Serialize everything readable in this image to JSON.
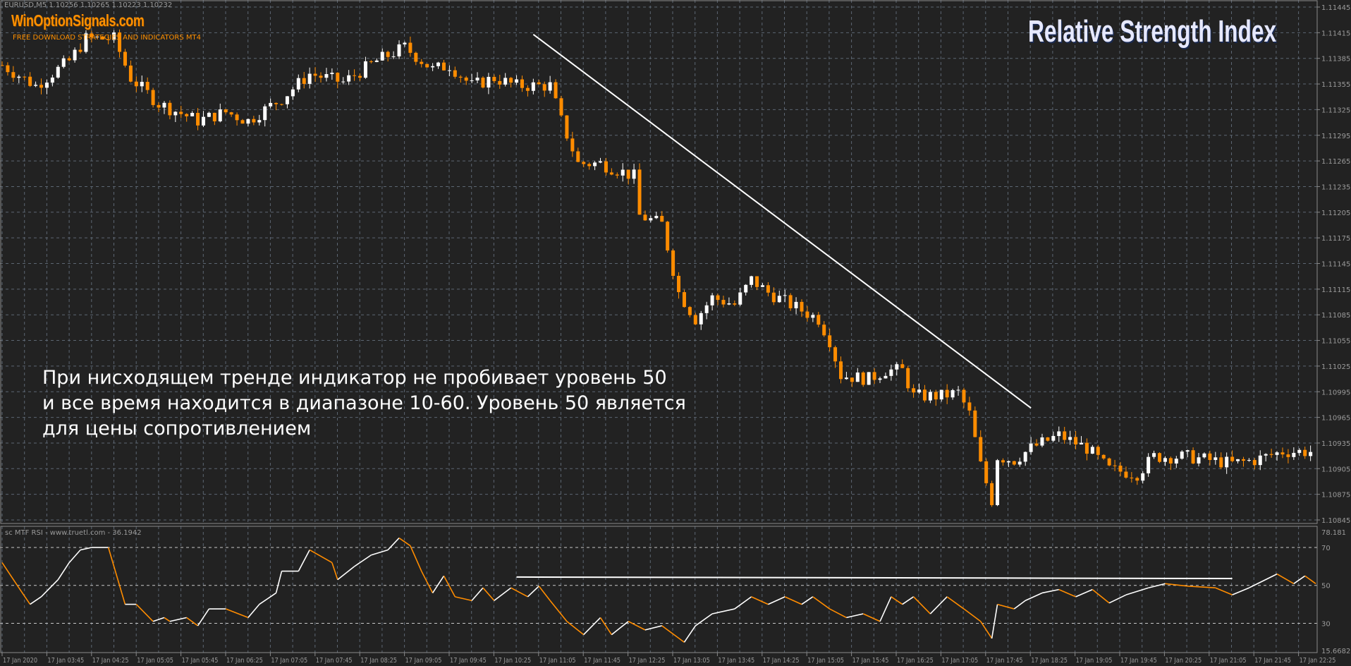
{
  "header": {
    "symbol_info": "EURUSD,M5  1.10256 1.10265 1.10223 1.10232",
    "brand": "WinOptionSignals.com",
    "brand_subtitle": "FREE DOWNLOAD STRATEGIES AND INDICATORS MT4",
    "title": "Relative Strength Index"
  },
  "annotation": {
    "lines": [
      "При нисходящем тренде индикатор не пробивает уровень 50",
      "и все время находится в диапазоне 10-60. Уровень 50 является",
      "для цены сопротивлением"
    ]
  },
  "colors": {
    "background": "#222222",
    "grid": "#5c6672",
    "axis_text": "#9a9a9a",
    "bull_candle": "#ffffff",
    "bear_candle": "#ff8c00",
    "trendline": "#ffffff"
  },
  "chart_data": [
    {
      "type": "candlestick",
      "symbol": "EURUSD",
      "timeframe": "M5",
      "y_ticks": [
        "1.11445",
        "1.11415",
        "1.11385",
        "1.11355",
        "1.11325",
        "1.11295",
        "1.11265",
        "1.11235",
        "1.11205",
        "1.11175",
        "1.11145",
        "1.11115",
        "1.11085",
        "1.11055",
        "1.11025",
        "1.10995",
        "1.10965",
        "1.10935",
        "1.10905",
        "1.10875",
        "1.10845"
      ],
      "ylim": [
        1.10845,
        1.11445
      ],
      "grid": true,
      "price_path": [
        [
          "03:05",
          1.11377
        ],
        [
          "03:35",
          1.11353
        ],
        [
          "04:05",
          1.11382
        ],
        [
          "04:20",
          1.11408
        ],
        [
          "04:45",
          1.11408
        ],
        [
          "05:00",
          1.11362
        ],
        [
          "05:25",
          1.11332
        ],
        [
          "06:00",
          1.11312
        ],
        [
          "06:25",
          1.11322
        ],
        [
          "06:45",
          1.11312
        ],
        [
          "07:15",
          1.11338
        ],
        [
          "07:40",
          1.11367
        ],
        [
          "08:10",
          1.11357
        ],
        [
          "08:40",
          1.11382
        ],
        [
          "09:05",
          1.11398
        ],
        [
          "09:30",
          1.11372
        ],
        [
          "09:45",
          1.11377
        ],
        [
          "10:05",
          1.11353
        ],
        [
          "10:25",
          1.11362
        ],
        [
          "10:45",
          1.11353
        ],
        [
          "11:15",
          1.11353
        ],
        [
          "11:25",
          1.11312
        ],
        [
          "11:40",
          1.11262
        ],
        [
          "12:00",
          1.11262
        ],
        [
          "12:30",
          1.11247
        ],
        [
          "12:35",
          1.11201
        ],
        [
          "12:55",
          1.11191
        ],
        [
          "13:10",
          1.11111
        ],
        [
          "13:25",
          1.1108
        ],
        [
          "13:40",
          1.11105
        ],
        [
          "14:00",
          1.11097
        ],
        [
          "14:15",
          1.11126
        ],
        [
          "14:30",
          1.11111
        ],
        [
          "14:50",
          1.11097
        ],
        [
          "15:15",
          1.1108
        ],
        [
          "15:25",
          1.11055
        ],
        [
          "15:35",
          1.11014
        ],
        [
          "16:00",
          1.1101
        ],
        [
          "16:15",
          1.1102
        ],
        [
          "16:30",
          1.1102
        ],
        [
          "16:40",
          1.1099
        ],
        [
          "17:05",
          1.1099
        ],
        [
          "17:20",
          1.10994
        ],
        [
          "17:30",
          1.10969
        ],
        [
          "17:40",
          1.10909
        ],
        [
          "17:50",
          1.10868
        ],
        [
          "17:55",
          1.10919
        ],
        [
          "18:10",
          1.10915
        ],
        [
          "18:25",
          1.10929
        ],
        [
          "18:50",
          1.10944
        ],
        [
          "19:15",
          1.10929
        ],
        [
          "19:35",
          1.10904
        ],
        [
          "20:00",
          1.10899
        ],
        [
          "20:15",
          1.10919
        ],
        [
          "20:45",
          1.10919
        ],
        [
          "21:25",
          1.10911
        ],
        [
          "21:45",
          1.10915
        ],
        [
          "22:10",
          1.10925
        ],
        [
          "22:40",
          1.10925
        ]
      ],
      "trendline": {
        "from": [
          "11:00",
          1.11413
        ],
        "to": [
          "18:25",
          1.10976
        ]
      }
    },
    {
      "type": "line",
      "name": "sc MTF RSI - www.truetl.com - 36.1942",
      "y_ticks": [
        "78.181",
        "70",
        "50",
        "30",
        "15.6682"
      ],
      "ylim": [
        15.6682,
        78.181
      ],
      "levels": [
        70,
        50,
        30
      ],
      "values": [
        [
          "03:05",
          62
        ],
        [
          "03:20",
          48.7
        ],
        [
          "03:30",
          40
        ],
        [
          "03:40",
          44
        ],
        [
          "03:55",
          53
        ],
        [
          "04:05",
          62
        ],
        [
          "04:15",
          68.7
        ],
        [
          "04:25",
          70
        ],
        [
          "04:40",
          70
        ],
        [
          "04:55",
          40
        ],
        [
          "05:05",
          40
        ],
        [
          "05:20",
          31
        ],
        [
          "05:30",
          33
        ],
        [
          "05:35",
          31
        ],
        [
          "05:50",
          33
        ],
        [
          "06:00",
          28.7
        ],
        [
          "06:10",
          37.6
        ],
        [
          "06:25",
          37.6
        ],
        [
          "06:45",
          33
        ],
        [
          "06:55",
          40
        ],
        [
          "07:10",
          46
        ],
        [
          "07:15",
          57.5
        ],
        [
          "07:30",
          57.5
        ],
        [
          "07:40",
          68.7
        ],
        [
          "08:00",
          62
        ],
        [
          "08:05",
          53
        ],
        [
          "08:20",
          60
        ],
        [
          "08:35",
          66
        ],
        [
          "08:50",
          68.7
        ],
        [
          "09:00",
          75
        ],
        [
          "09:10",
          70.9
        ],
        [
          "09:20",
          57.5
        ],
        [
          "09:30",
          46
        ],
        [
          "09:40",
          55
        ],
        [
          "09:50",
          44
        ],
        [
          "10:05",
          42
        ],
        [
          "10:15",
          48.7
        ],
        [
          "10:25",
          42
        ],
        [
          "10:40",
          48.7
        ],
        [
          "10:55",
          44
        ],
        [
          "11:05",
          49.6
        ],
        [
          "11:15",
          42
        ],
        [
          "11:30",
          31
        ],
        [
          "11:45",
          24
        ],
        [
          "12:00",
          33
        ],
        [
          "12:10",
          24
        ],
        [
          "12:25",
          31
        ],
        [
          "12:40",
          26.5
        ],
        [
          "12:55",
          28.7
        ],
        [
          "13:15",
          20
        ],
        [
          "13:25",
          28.7
        ],
        [
          "13:40",
          35
        ],
        [
          "14:00",
          37.6
        ],
        [
          "14:15",
          44
        ],
        [
          "14:30",
          40
        ],
        [
          "14:45",
          44
        ],
        [
          "15:00",
          40
        ],
        [
          "15:10",
          44
        ],
        [
          "15:25",
          37.6
        ],
        [
          "15:40",
          33
        ],
        [
          "15:55",
          35
        ],
        [
          "16:10",
          31
        ],
        [
          "16:20",
          44
        ],
        [
          "16:30",
          40
        ],
        [
          "16:40",
          44
        ],
        [
          "16:55",
          35
        ],
        [
          "17:10",
          44
        ],
        [
          "17:25",
          37.6
        ],
        [
          "17:40",
          31
        ],
        [
          "17:50",
          22
        ],
        [
          "17:55",
          40
        ],
        [
          "18:10",
          37.6
        ],
        [
          "18:20",
          42
        ],
        [
          "18:35",
          46
        ],
        [
          "18:50",
          47.8
        ],
        [
          "19:05",
          44
        ],
        [
          "19:20",
          47.8
        ],
        [
          "19:35",
          40.7
        ],
        [
          "19:50",
          45
        ],
        [
          "20:10",
          48.7
        ],
        [
          "20:25",
          50.9
        ],
        [
          "20:45",
          49.6
        ],
        [
          "21:10",
          48.7
        ],
        [
          "21:25",
          45
        ],
        [
          "21:40",
          48.7
        ],
        [
          "22:05",
          56
        ],
        [
          "22:20",
          50.9
        ],
        [
          "22:30",
          55
        ],
        [
          "22:40",
          50.9
        ]
      ],
      "trendline": {
        "from": [
          "10:45",
          54.4
        ],
        "to": [
          "21:25",
          53.6
        ]
      }
    }
  ],
  "x_axis": {
    "tick_labels": [
      "17 Jan 2020",
      "17 Jan 03:45",
      "17 Jan 04:25",
      "17 Jan 05:05",
      "17 Jan 05:45",
      "17 Jan 06:25",
      "17 Jan 07:05",
      "17 Jan 07:45",
      "17 Jan 08:25",
      "17 Jan 09:05",
      "17 Jan 09:45",
      "17 Jan 10:25",
      "17 Jan 11:05",
      "17 Jan 11:45",
      "17 Jan 12:25",
      "17 Jan 13:05",
      "17 Jan 13:45",
      "17 Jan 14:25",
      "17 Jan 15:05",
      "17 Jan 15:45",
      "17 Jan 16:25",
      "17 Jan 17:05",
      "17 Jan 17:45",
      "17 Jan 18:25",
      "17 Jan 19:05",
      "17 Jan 19:45",
      "17 Jan 20:25",
      "17 Jan 21:05",
      "17 Jan 21:45",
      "17 Jan 22:25"
    ]
  }
}
